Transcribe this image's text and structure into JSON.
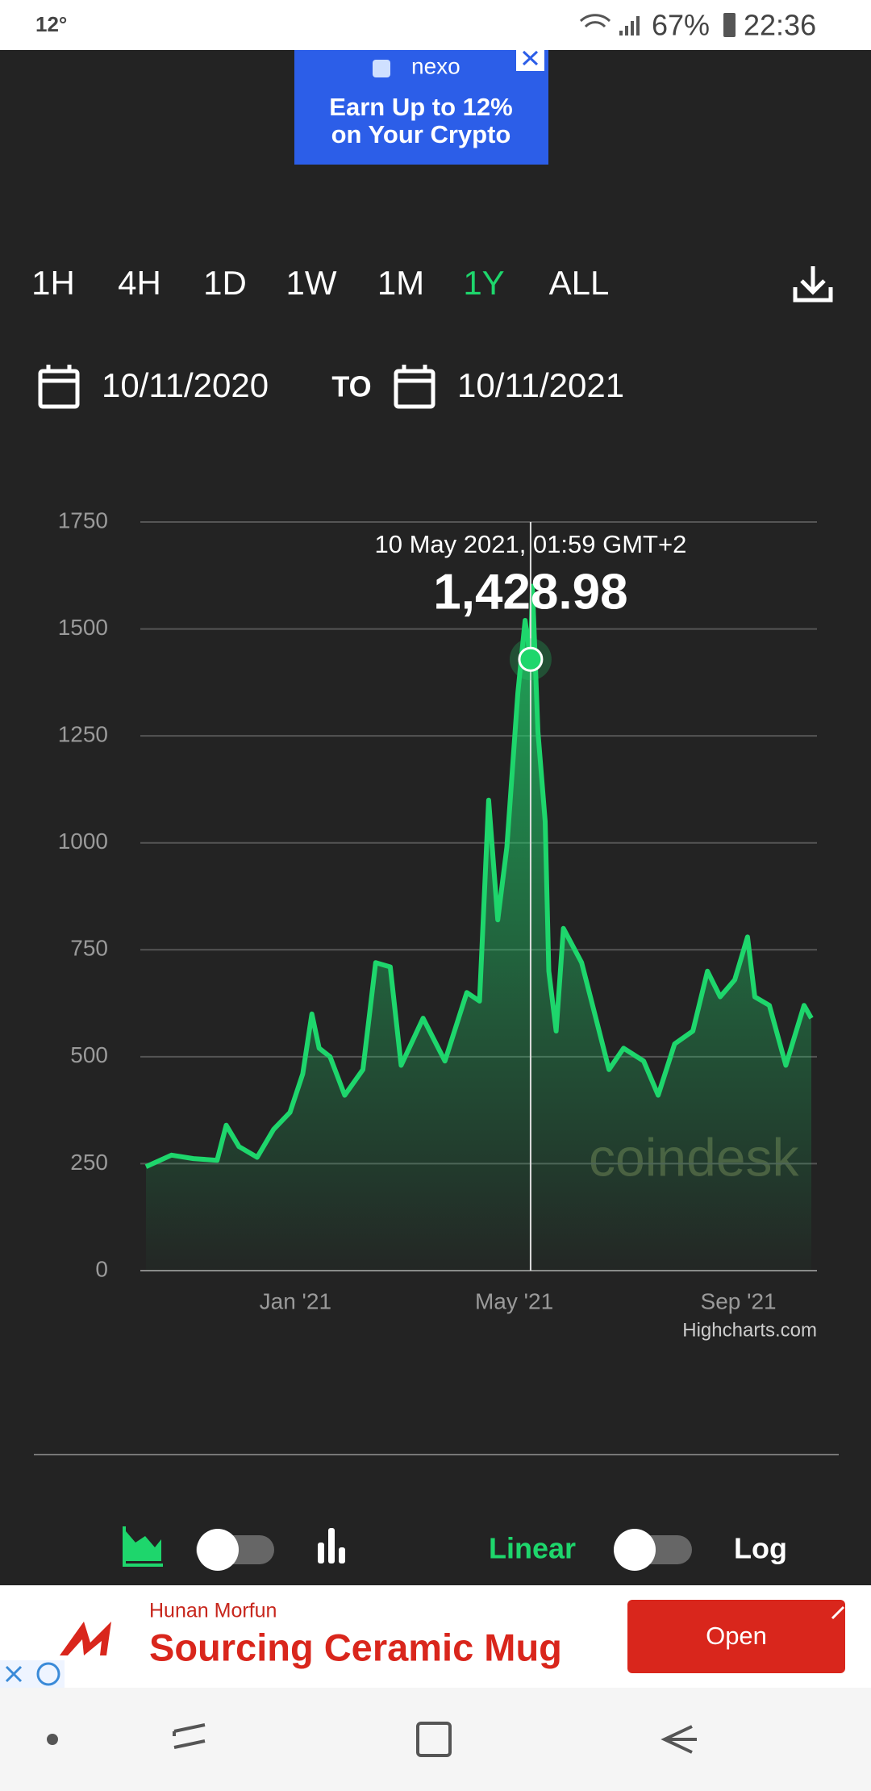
{
  "status_bar": {
    "temperature": "12°",
    "battery": "67%",
    "time": "22:36"
  },
  "top_ad": {
    "brand": "nexo",
    "line1": "Earn Up to 12%",
    "line2": "on Your Crypto"
  },
  "ranges": [
    {
      "label": "1H",
      "selected": false
    },
    {
      "label": "4H",
      "selected": false
    },
    {
      "label": "1D",
      "selected": false
    },
    {
      "label": "1W",
      "selected": false
    },
    {
      "label": "1M",
      "selected": false
    },
    {
      "label": "1Y",
      "selected": true
    },
    {
      "label": "ALL",
      "selected": false
    }
  ],
  "date_range": {
    "from": "10/11/2020",
    "to_label": "TO",
    "to": "10/11/2021"
  },
  "chart_data": {
    "type": "area",
    "color": "#1ed66c",
    "x": [
      "2020-10-11",
      "2020-10-25",
      "2020-11-06",
      "2020-11-19",
      "2020-11-24",
      "2020-12-01",
      "2020-12-11",
      "2020-12-20",
      "2020-12-29",
      "2021-01-05",
      "2021-01-10",
      "2021-01-14",
      "2021-01-20",
      "2021-01-28",
      "2021-02-07",
      "2021-02-14",
      "2021-02-22",
      "2021-02-28",
      "2021-03-12",
      "2021-03-24",
      "2021-04-05",
      "2021-04-12",
      "2021-04-17",
      "2021-04-22",
      "2021-04-27",
      "2021-05-03",
      "2021-05-07",
      "2021-05-10",
      "2021-05-11",
      "2021-05-14",
      "2021-05-18",
      "2021-05-20",
      "2021-05-24",
      "2021-05-28",
      "2021-06-07",
      "2021-06-13",
      "2021-06-22",
      "2021-06-30",
      "2021-07-11",
      "2021-07-19",
      "2021-07-28",
      "2021-08-07",
      "2021-08-15",
      "2021-08-22",
      "2021-08-30",
      "2021-09-06",
      "2021-09-10",
      "2021-09-18",
      "2021-09-27",
      "2021-10-07",
      "2021-10-11"
    ],
    "values": [
      243,
      270,
      262,
      258,
      340,
      290,
      265,
      330,
      370,
      460,
      600,
      520,
      500,
      410,
      470,
      720,
      710,
      480,
      590,
      490,
      650,
      630,
      1100,
      820,
      990,
      1350,
      1520,
      1428.98,
      1600,
      1260,
      1050,
      700,
      560,
      800,
      720,
      620,
      470,
      520,
      490,
      410,
      530,
      560,
      700,
      640,
      680,
      780,
      640,
      620,
      480,
      620,
      590
    ],
    "value_labels": [
      null,
      null,
      null,
      null,
      null,
      null,
      null,
      null,
      null,
      null,
      null,
      null,
      null,
      null,
      null,
      null,
      null,
      null,
      null,
      null,
      null,
      null,
      null,
      null,
      null,
      null,
      null,
      "1,428.98",
      null,
      null,
      null,
      null,
      null,
      null,
      null,
      null,
      null,
      null,
      null,
      null,
      null,
      null,
      null,
      null,
      null,
      null,
      null,
      null,
      null,
      null,
      null
    ],
    "tooltip": "10 May 2021, 01:59 GMT+2",
    "xlim": [
      "2020-10-11",
      "2021-10-11"
    ],
    "xticks": [
      {
        "value": "2021-01-01",
        "label": "Jan '21"
      },
      {
        "value": "2021-05-01",
        "label": "May '21"
      },
      {
        "value": "2021-09-01",
        "label": "Sep '21"
      }
    ],
    "ylim": [
      0,
      1750
    ],
    "yticks": [
      0,
      250,
      500,
      750,
      1000,
      1250,
      1500,
      1750
    ],
    "grid": true,
    "watermark": "coindesk",
    "credits": "Highcharts.com"
  },
  "controls": {
    "scale_linear": "Linear",
    "scale_log": "Log"
  },
  "bottom_ad": {
    "advertiser": "Hunan Morfun",
    "headline": "Sourcing Ceramic Mug",
    "button": "Open"
  }
}
